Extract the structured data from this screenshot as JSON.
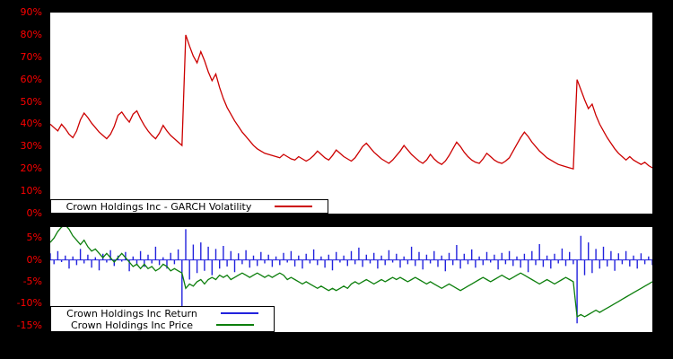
{
  "page": {
    "background": "#000000",
    "plot_background": "#ffffff",
    "tick_color": "#ff0000"
  },
  "chart_data": [
    {
      "type": "line",
      "title": "",
      "xlabel": "",
      "ylabel": "",
      "grid": false,
      "legend_position": "bottom-left-inside",
      "ylim": [
        0,
        90
      ],
      "yticks": [
        90,
        80,
        70,
        60,
        50,
        40,
        30,
        20,
        10,
        0
      ],
      "ytick_suffix": "%",
      "legend": [
        {
          "label": "Crown Holdings Inc - GARCH Volatility",
          "color": "#cc0000"
        }
      ],
      "series": [
        {
          "name": "garch-volatility",
          "style": "line",
          "color": "#cc0000",
          "values": [
            40,
            38.5,
            37,
            40,
            38,
            35.5,
            34,
            37,
            42,
            45,
            43,
            40.5,
            38.5,
            36.5,
            35,
            33.5,
            35.5,
            39,
            44,
            45.5,
            43,
            41,
            44.5,
            46,
            42.5,
            39.5,
            37,
            35,
            33.5,
            36,
            39.5,
            37,
            35,
            33.5,
            32,
            30.5,
            80,
            75,
            70.5,
            67.5,
            72.5,
            68.5,
            63.5,
            59.5,
            62.5,
            56.5,
            51.5,
            47.5,
            44.5,
            41.5,
            39,
            36.5,
            34.5,
            32.5,
            30.5,
            29,
            28,
            27,
            26.5,
            26,
            25.5,
            25,
            26.5,
            25.5,
            24.5,
            24,
            25.5,
            24.5,
            23.5,
            24.5,
            26,
            28,
            26.5,
            25,
            24,
            26,
            28.5,
            27,
            25.5,
            24.5,
            23.5,
            25,
            27.5,
            30,
            31.5,
            29.5,
            27.5,
            26,
            24.5,
            23.5,
            22.5,
            24,
            26,
            28,
            30.5,
            28.5,
            26.5,
            25,
            23.5,
            22.5,
            24,
            26.5,
            24.5,
            23,
            22,
            23.5,
            26,
            29,
            32,
            30,
            27.5,
            25.5,
            24,
            23,
            22.5,
            24.5,
            27,
            25.5,
            24,
            23,
            22.5,
            23.5,
            25,
            28,
            31,
            34,
            36.5,
            34.5,
            32,
            30,
            28,
            26.5,
            25,
            24,
            23,
            22,
            21.5,
            21,
            20.5,
            20,
            60,
            55.5,
            51,
            47,
            49,
            44,
            40,
            37,
            34,
            31.5,
            29,
            27,
            25.5,
            24,
            25.5,
            24,
            23,
            22,
            23,
            21.5,
            20.5
          ]
        }
      ]
    },
    {
      "type": "mixed",
      "title": "",
      "xlabel": "",
      "ylabel": "",
      "grid": false,
      "legend_position": "bottom-left-inside",
      "ylim": [
        -16.5,
        7.5
      ],
      "yticks": [
        5,
        0,
        -5,
        -10,
        -15
      ],
      "ytick_suffix": "%",
      "legend": [
        {
          "label": "Crown Holdings Inc Return",
          "color": "#2222dd"
        },
        {
          "label": "Crown Holdings Inc Price",
          "color": "#0d7f0d"
        }
      ],
      "series": [
        {
          "name": "return",
          "style": "impulse",
          "color": "#2222dd",
          "values": [
            1.5,
            -1.0,
            2.0,
            -0.5,
            1.0,
            -2.0,
            0.8,
            -1.2,
            2.5,
            -0.8,
            1.2,
            -1.8,
            0.6,
            -2.4,
            1.4,
            -0.6,
            2.2,
            -1.4,
            1.0,
            -0.4,
            1.8,
            -2.6,
            0.8,
            -1.0,
            2.0,
            -1.6,
            1.2,
            -0.8,
            3.0,
            -1.2,
            0.6,
            -2.0,
            1.6,
            -1.0,
            2.4,
            -13.5,
            7.0,
            -4.5,
            3.5,
            -3.0,
            4.0,
            -2.5,
            3.0,
            -3.5,
            2.5,
            -2.0,
            3.2,
            -1.5,
            2.0,
            -2.8,
            1.5,
            -1.0,
            2.2,
            -1.8,
            1.0,
            -1.4,
            1.8,
            -0.8,
            1.2,
            -1.6,
            0.8,
            -1.2,
            1.6,
            -0.6,
            2.0,
            -1.5,
            1.0,
            -2.0,
            1.4,
            -0.8,
            2.4,
            -1.2,
            0.8,
            -1.8,
            1.2,
            -2.4,
            1.8,
            -0.6,
            1.0,
            -1.4,
            2.0,
            -1.0,
            2.8,
            -1.6,
            1.2,
            -0.8,
            1.6,
            -2.0,
            1.0,
            -1.2,
            2.2,
            -0.6,
            1.4,
            -1.8,
            0.8,
            -1.0,
            3.0,
            -1.4,
            1.8,
            -2.2,
            1.2,
            -0.8,
            2.0,
            -1.6,
            1.0,
            -2.6,
            1.6,
            -1.2,
            3.4,
            -2.0,
            1.4,
            -1.0,
            2.4,
            -1.8,
            0.8,
            -1.2,
            1.8,
            -0.6,
            1.2,
            -2.2,
            1.6,
            -1.0,
            2.0,
            -1.4,
            0.8,
            -1.8,
            1.4,
            -2.8,
            2.0,
            -1.2,
            3.6,
            -1.6,
            1.0,
            -2.0,
            1.4,
            -0.8,
            2.6,
            -1.4,
            1.8,
            -1.0,
            -14.5,
            5.5,
            -3.5,
            4.0,
            -3.0,
            2.5,
            -2.0,
            3.0,
            -1.5,
            2.0,
            -2.5,
            1.5,
            -1.0,
            2.0,
            -1.5,
            1.0,
            -2.0,
            1.5,
            -1.0,
            0.8,
            -1.2
          ]
        },
        {
          "name": "price",
          "style": "line",
          "color": "#0d7f0d",
          "values": [
            4,
            5,
            6.5,
            7.5,
            8,
            7,
            5.5,
            4.5,
            3.5,
            4.5,
            3,
            2,
            2.5,
            1.5,
            0.5,
            1.5,
            0.5,
            -0.5,
            0.5,
            1.5,
            0.5,
            -0.5,
            -1.5,
            -1,
            -2,
            -1,
            -2,
            -1.5,
            -2.5,
            -2,
            -1,
            -1.5,
            -2.5,
            -2,
            -2.5,
            -3,
            -6.5,
            -5.5,
            -6,
            -5,
            -4.5,
            -5.5,
            -4.5,
            -4,
            -4.5,
            -3.5,
            -4,
            -3.5,
            -4.5,
            -4,
            -3.5,
            -3,
            -3.5,
            -4,
            -3.5,
            -3,
            -3.5,
            -4,
            -3.5,
            -4,
            -3.5,
            -3,
            -3.5,
            -4.5,
            -4,
            -4.5,
            -5,
            -5.5,
            -5,
            -5.5,
            -6,
            -6.5,
            -6,
            -6.5,
            -7,
            -6.5,
            -7,
            -6.5,
            -6,
            -6.5,
            -5.5,
            -5,
            -5.5,
            -5,
            -4.5,
            -5,
            -5.5,
            -5,
            -4.5,
            -5,
            -4.5,
            -4,
            -4.5,
            -4,
            -4.5,
            -5,
            -4.5,
            -4,
            -4.5,
            -5,
            -5.5,
            -5,
            -5.5,
            -6,
            -6.5,
            -6,
            -5.5,
            -6,
            -6.5,
            -7,
            -6.5,
            -6,
            -5.5,
            -5,
            -4.5,
            -4,
            -4.5,
            -5,
            -4.5,
            -4,
            -3.5,
            -4,
            -4.5,
            -4,
            -3.5,
            -3,
            -3.5,
            -4,
            -4.5,
            -5,
            -5.5,
            -5,
            -4.5,
            -5,
            -5.5,
            -5,
            -4.5,
            -4,
            -4.5,
            -5,
            -13,
            -12.5,
            -13,
            -12.5,
            -12,
            -11.5,
            -12,
            -11.5,
            -11,
            -10.5,
            -10,
            -9.5,
            -9,
            -8.5,
            -8,
            -7.5,
            -7,
            -6.5,
            -6,
            -5.5,
            -5
          ]
        }
      ]
    }
  ]
}
